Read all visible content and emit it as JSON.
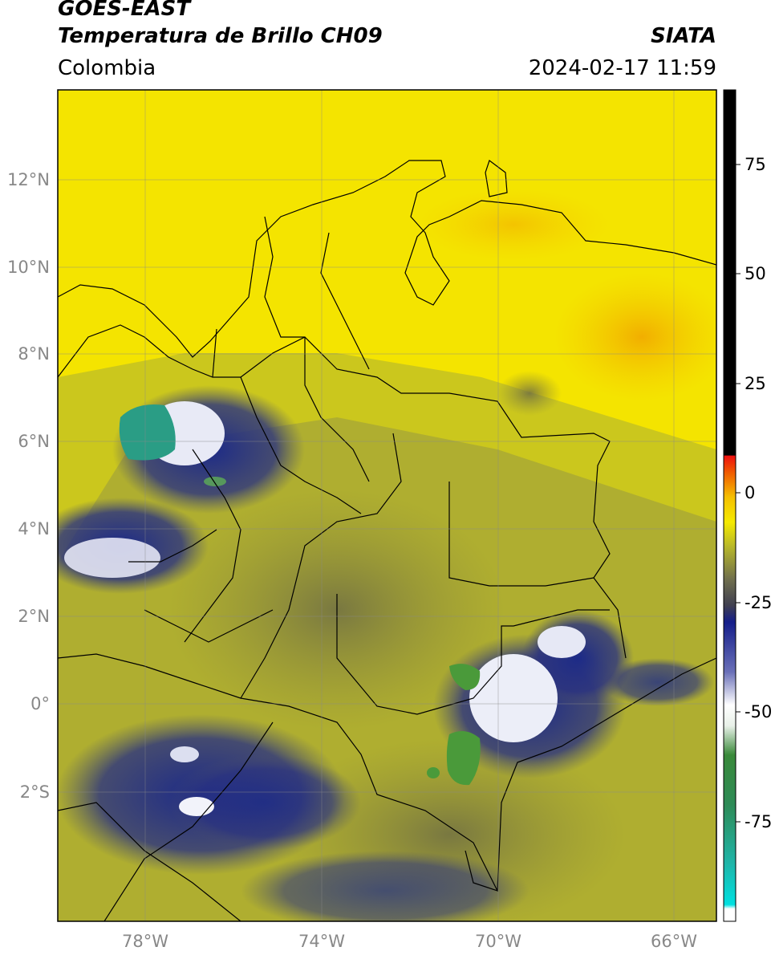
{
  "header": {
    "line1": "GOES-EAST",
    "line2": "Temperatura de Brillo CH09",
    "region": "Colombia",
    "source": "SIATA",
    "timestamp": "2024-02-17 11:59"
  },
  "map": {
    "lon_range": [
      -80,
      -65
    ],
    "lat_range": [
      -5,
      14
    ],
    "lat_ticks": [
      {
        "value": 12,
        "label": "12°N"
      },
      {
        "value": 10,
        "label": "10°N"
      },
      {
        "value": 8,
        "label": "8°N"
      },
      {
        "value": 6,
        "label": "6°N"
      },
      {
        "value": 4,
        "label": "4°N"
      },
      {
        "value": 2,
        "label": "2°N"
      },
      {
        "value": 0,
        "label": "0°"
      },
      {
        "value": -2,
        "label": "2°S"
      }
    ],
    "lon_ticks": [
      {
        "value": -78,
        "label": "78°W"
      },
      {
        "value": -74,
        "label": "74°W"
      },
      {
        "value": -70,
        "label": "70°W"
      },
      {
        "value": -66,
        "label": "66°W"
      }
    ],
    "colors": {
      "warm": "#f3e200",
      "mid": "#b5b62c",
      "dark_olive": "#6b6a46",
      "cold_blue": "#1e2a8a",
      "very_cold_white": "#e8eaf5",
      "green": "#3f9a3f",
      "teal": "#2fa58f",
      "orange": "#f5b400"
    }
  },
  "colorbar": {
    "range": [
      -95,
      90
    ],
    "ticks": [
      {
        "value": 75,
        "label": "75"
      },
      {
        "value": 50,
        "label": "50"
      },
      {
        "value": 25,
        "label": "25"
      },
      {
        "value": 0,
        "label": "0"
      },
      {
        "value": -25,
        "label": "-25"
      },
      {
        "value": -50,
        "label": "-50"
      },
      {
        "value": -75,
        "label": "-75"
      }
    ]
  }
}
